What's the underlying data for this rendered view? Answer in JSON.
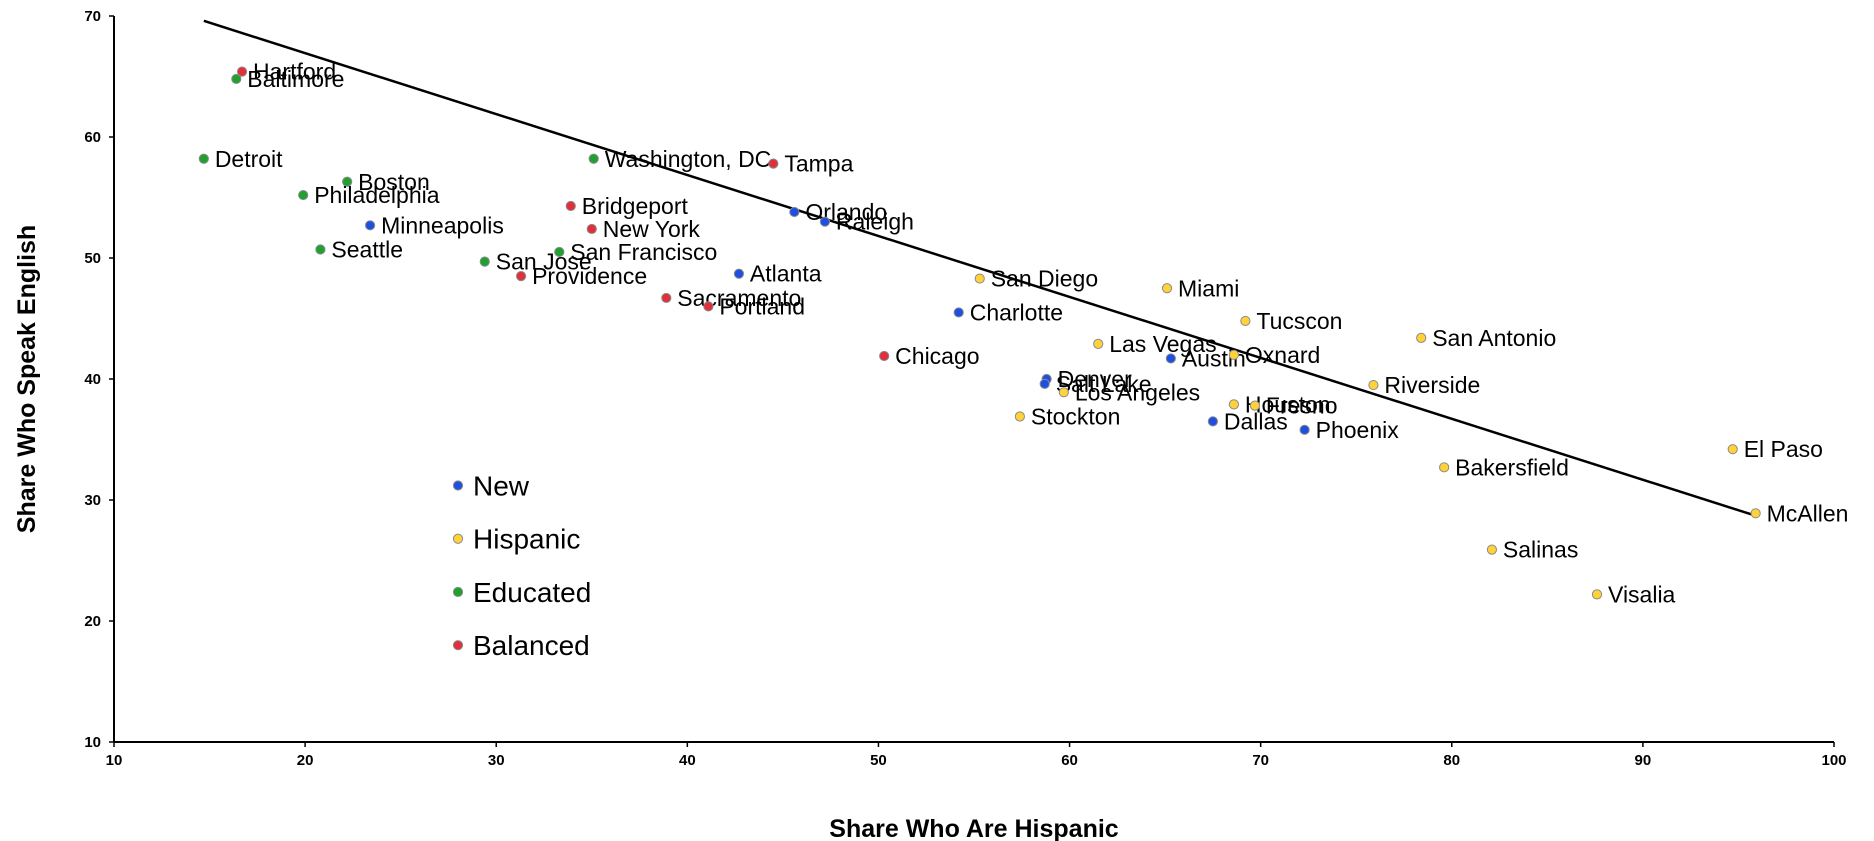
{
  "chart_data": {
    "type": "scatter",
    "title": "",
    "xlabel": "Share Who Are Hispanic",
    "ylabel": "Share Who Speak English",
    "xlim": [
      10,
      100
    ],
    "ylim": [
      10,
      70
    ],
    "xticks": [
      10,
      20,
      30,
      40,
      50,
      60,
      70,
      80,
      90,
      100
    ],
    "yticks": [
      10,
      20,
      30,
      40,
      50,
      60,
      70
    ],
    "grid": false,
    "legend_position": "lower-left",
    "trendline": {
      "x": [
        14.7,
        95.9
      ],
      "y": [
        69.6,
        28.7
      ]
    },
    "series": [
      {
        "name": "New",
        "color": "#1f4fe0",
        "points": [
          {
            "label": "Minneapolis",
            "x": 23.4,
            "y": 52.7
          },
          {
            "label": "Orlando",
            "x": 45.6,
            "y": 53.8
          },
          {
            "label": "Raleigh",
            "x": 47.2,
            "y": 53.0
          },
          {
            "label": "Atlanta",
            "x": 42.7,
            "y": 48.7
          },
          {
            "label": "Charlotte",
            "x": 54.2,
            "y": 45.5
          },
          {
            "label": "Denver",
            "x": 58.8,
            "y": 40.0
          },
          {
            "label": "Salt Lake",
            "x": 58.7,
            "y": 39.6
          },
          {
            "label": "Austin",
            "x": 65.3,
            "y": 41.7
          },
          {
            "label": "Dallas",
            "x": 67.5,
            "y": 36.5
          },
          {
            "label": "Phoenix",
            "x": 72.3,
            "y": 35.8
          }
        ]
      },
      {
        "name": "Hispanic",
        "color": "#ffd23a",
        "points": [
          {
            "label": "San Diego",
            "x": 55.3,
            "y": 48.3
          },
          {
            "label": "Miami",
            "x": 65.1,
            "y": 47.5
          },
          {
            "label": "Tucscon",
            "x": 69.2,
            "y": 44.8
          },
          {
            "label": "Las Vegas",
            "x": 61.5,
            "y": 42.9
          },
          {
            "label": "Oxnard",
            "x": 68.6,
            "y": 42.0
          },
          {
            "label": "San Antonio",
            "x": 78.4,
            "y": 43.4
          },
          {
            "label": "Riverside",
            "x": 75.9,
            "y": 39.5
          },
          {
            "label": "Los Angeles",
            "x": 59.7,
            "y": 38.9
          },
          {
            "label": "Houston",
            "x": 68.6,
            "y": 37.9
          },
          {
            "label": "Fresno",
            "x": 69.7,
            "y": 37.8
          },
          {
            "label": "Stockton",
            "x": 57.4,
            "y": 36.9
          },
          {
            "label": "Bakersfield",
            "x": 79.6,
            "y": 32.7
          },
          {
            "label": "El Paso",
            "x": 94.7,
            "y": 34.2
          },
          {
            "label": "McAllen",
            "x": 95.9,
            "y": 28.9
          },
          {
            "label": "Salinas",
            "x": 82.1,
            "y": 25.9
          },
          {
            "label": "Visalia",
            "x": 87.6,
            "y": 22.2
          }
        ]
      },
      {
        "name": "Educated",
        "color": "#1ea12e",
        "points": [
          {
            "label": "Baltimore",
            "x": 16.4,
            "y": 64.8
          },
          {
            "label": "Detroit",
            "x": 14.7,
            "y": 58.2
          },
          {
            "label": "Boston",
            "x": 22.2,
            "y": 56.3
          },
          {
            "label": "Philadelphia",
            "x": 19.9,
            "y": 55.2
          },
          {
            "label": "Seattle",
            "x": 20.8,
            "y": 50.7
          },
          {
            "label": "San Jose",
            "x": 29.4,
            "y": 49.7
          },
          {
            "label": "San Francisco",
            "x": 33.3,
            "y": 50.5
          },
          {
            "label": "Washington, DC",
            "x": 35.1,
            "y": 58.2
          }
        ]
      },
      {
        "name": "Balanced",
        "color": "#e0303c",
        "points": [
          {
            "label": "Hartford",
            "x": 16.7,
            "y": 65.4
          },
          {
            "label": "Bridgeport",
            "x": 33.9,
            "y": 54.3
          },
          {
            "label": "New York",
            "x": 35.0,
            "y": 52.4
          },
          {
            "label": "Providence",
            "x": 31.3,
            "y": 48.5
          },
          {
            "label": "Sacramento",
            "x": 38.9,
            "y": 46.7
          },
          {
            "label": "Portland",
            "x": 41.1,
            "y": 46.0
          },
          {
            "label": "Tampa",
            "x": 44.5,
            "y": 57.8
          },
          {
            "label": "Chicago",
            "x": 50.3,
            "y": 41.9
          }
        ]
      }
    ]
  }
}
